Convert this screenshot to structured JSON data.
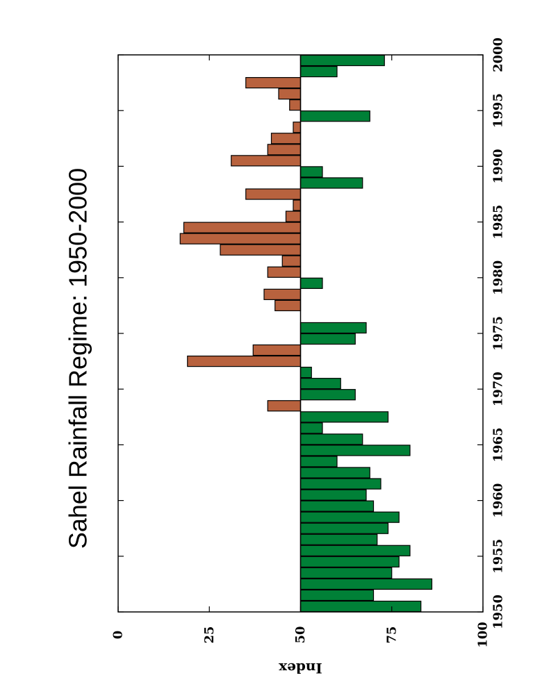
{
  "chart_data": {
    "type": "bar",
    "orientation": "rotated-90-ccw",
    "title": "Sahel Rainfall Regime: 1950-2000",
    "xlabel": "",
    "ylabel": "Index",
    "xlim": [
      1950,
      2000
    ],
    "ylim": [
      0,
      100
    ],
    "baseline": 50,
    "x_ticks": [
      "1950",
      "1955",
      "1960",
      "1965",
      "1970",
      "1975",
      "1980",
      "1985",
      "1990",
      "1995",
      "2000"
    ],
    "y_ticks": [
      "0",
      "25",
      "50",
      "75",
      "100"
    ],
    "years": [
      1950,
      1951,
      1952,
      1953,
      1954,
      1955,
      1956,
      1957,
      1958,
      1959,
      1960,
      1961,
      1962,
      1963,
      1964,
      1965,
      1966,
      1967,
      1968,
      1969,
      1970,
      1971,
      1972,
      1973,
      1974,
      1975,
      1976,
      1977,
      1978,
      1979,
      1980,
      1981,
      1982,
      1983,
      1984,
      1985,
      1986,
      1987,
      1988,
      1989,
      1990,
      1991,
      1992,
      1993,
      1994,
      1995,
      1996,
      1997,
      1998,
      1999
    ],
    "values": [
      83,
      70,
      86,
      75,
      77,
      80,
      71,
      74,
      77,
      70,
      68,
      72,
      69,
      60,
      80,
      67,
      56,
      74,
      41,
      65,
      61,
      53,
      19,
      37,
      65,
      68,
      null,
      43,
      40,
      56,
      41,
      45,
      28,
      17,
      18,
      46,
      48,
      35,
      67,
      56,
      31,
      41,
      42,
      48,
      69,
      47,
      44,
      35,
      60,
      73
    ],
    "colors": {
      "above": "#008037",
      "below": "#b8623e",
      "outline": "#000000"
    }
  }
}
